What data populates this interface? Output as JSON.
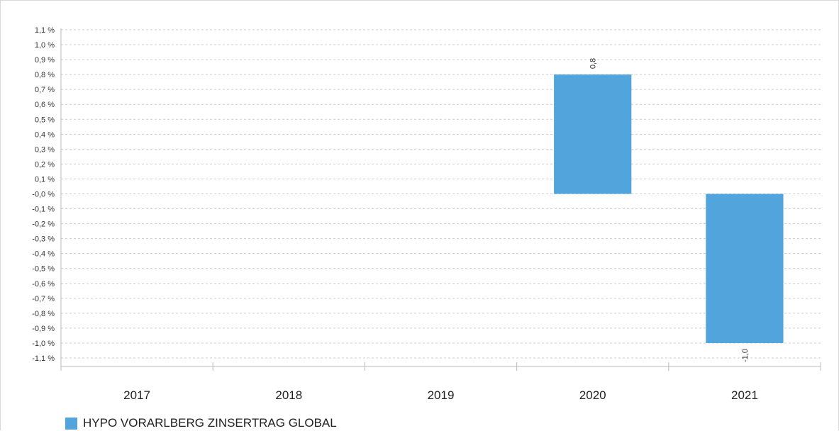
{
  "chart_data": {
    "type": "bar",
    "categories": [
      "2017",
      "2018",
      "2019",
      "2020",
      "2021"
    ],
    "series": [
      {
        "name": "HYPO VORARLBERG ZINSERTRAG GLOBAL",
        "values": [
          null,
          null,
          null,
          0.8,
          -1.0
        ],
        "data_labels": [
          "",
          "",
          "",
          "0,8",
          "-1,0"
        ],
        "color": "#52a5dc"
      }
    ],
    "ylim": [
      -1.1,
      1.1
    ],
    "yticks": [
      1.1,
      1.0,
      0.9,
      0.8,
      0.7,
      0.6,
      0.5,
      0.4,
      0.3,
      0.2,
      0.1,
      -0.0,
      -0.1,
      -0.2,
      -0.3,
      -0.4,
      -0.5,
      -0.6,
      -0.7,
      -0.8,
      -0.9,
      -1.0,
      -1.1
    ],
    "ytick_labels": [
      "1,1 %",
      "1,0 %",
      "0,9 %",
      "0,8 %",
      "0,7 %",
      "0,6 %",
      "0,5 %",
      "0,4 %",
      "0,3 %",
      "0,2 %",
      "0,1 %",
      "-0,0 %",
      "-0,1 %",
      "-0,2 %",
      "-0,3 %",
      "-0,4 %",
      "-0,5 %",
      "-0,6 %",
      "-0,7 %",
      "-0,8 %",
      "-0,9 %",
      "-1,0 %",
      "-1,1 %"
    ],
    "grid": true,
    "legend_position": "bottom-left",
    "colors": {
      "grid": "#cccccc",
      "axis": "#bbbbbb",
      "text": "#222222",
      "tick_text": "#333333"
    }
  }
}
